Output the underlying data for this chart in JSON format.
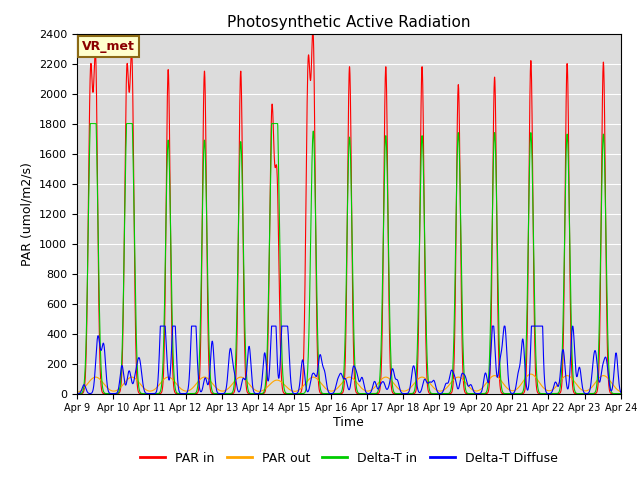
{
  "title": "Photosynthetic Active Radiation",
  "ylabel": "PAR (umol/m2/s)",
  "xlabel": "Time",
  "annotation": "VR_met",
  "ylim": [
    0,
    2400
  ],
  "plot_bg_color": "#dcdcdc",
  "fig_bg_color": "#ffffff",
  "legend_labels": [
    "PAR in",
    "PAR out",
    "Delta-T in",
    "Delta-T Diffuse"
  ],
  "legend_colors": [
    "#ff0000",
    "#ffa500",
    "#00cc00",
    "#0000ff"
  ],
  "xtick_labels": [
    "Apr 9",
    "Apr 10",
    "Apr 11",
    "Apr 12",
    "Apr 13",
    "Apr 14",
    "Apr 15",
    "Apr 16",
    "Apr 17",
    "Apr 18",
    "Apr 19",
    "Apr 20",
    "Apr 21",
    "Apr 22",
    "Apr 23",
    "Apr 24"
  ],
  "num_days": 15,
  "yticks": [
    0,
    200,
    400,
    600,
    800,
    1000,
    1200,
    1400,
    1600,
    1800,
    2000,
    2200,
    2400
  ],
  "par_in_peaks": [
    2130,
    2130,
    2160,
    2150,
    2150,
    1360,
    2260,
    2180,
    2180,
    2180,
    2060,
    2110,
    2220,
    2200,
    2210
  ],
  "par_in_double": [
    2100,
    2100,
    0,
    0,
    0,
    1870,
    2150,
    0,
    0,
    0,
    0,
    0,
    0,
    0,
    0
  ],
  "par_out_peaks": [
    110,
    110,
    110,
    110,
    110,
    90,
    110,
    110,
    110,
    110,
    110,
    120,
    130,
    120,
    120
  ],
  "delta_t_in_peaks": [
    1680,
    1660,
    1690,
    1690,
    1680,
    1750,
    1750,
    1710,
    1720,
    1720,
    1740,
    1740,
    1740,
    1730,
    1730
  ],
  "delta_t_in_double": [
    1660,
    1640,
    0,
    0,
    0,
    1620,
    0,
    0,
    0,
    0,
    0,
    0,
    0,
    0,
    0
  ],
  "delta_t_diffuse_peaks": [
    190,
    120,
    270,
    270,
    185,
    390,
    140,
    130,
    100,
    100,
    100,
    220,
    410,
    190,
    180
  ]
}
